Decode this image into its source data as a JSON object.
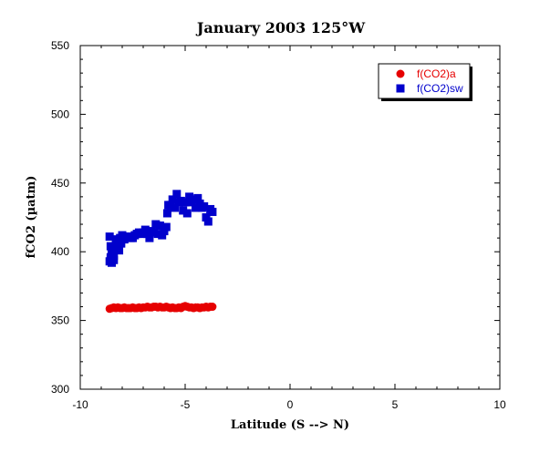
{
  "chart_data": {
    "type": "scatter",
    "title": "January 2003 125°W",
    "xlabel": "Latitude (S --> N)",
    "ylabel": "fCO2 (µatm)",
    "xlim": [
      -10,
      10
    ],
    "ylim": [
      300,
      550
    ],
    "xticks": [
      -10,
      -5,
      0,
      5,
      10
    ],
    "yticks": [
      300,
      350,
      400,
      450,
      500,
      550
    ],
    "x_tick_labels": [
      "-10",
      "-5",
      "0",
      "5",
      "10"
    ],
    "y_tick_labels": [
      "300",
      "350",
      "400",
      "450",
      "500",
      "550"
    ],
    "grid": false,
    "legend_position": "top-right",
    "series": [
      {
        "name": "f(CO2)a",
        "marker": "circle",
        "color": "#e60000",
        "x": [
          -8.6,
          -8.5,
          -8.4,
          -8.3,
          -8.2,
          -8.1,
          -8.0,
          -7.9,
          -7.8,
          -7.7,
          -7.6,
          -7.5,
          -7.4,
          -7.3,
          -7.2,
          -7.1,
          -7.0,
          -6.9,
          -6.8,
          -6.7,
          -6.6,
          -6.5,
          -6.4,
          -6.3,
          -6.2,
          -6.1,
          -6.0,
          -5.9,
          -5.8,
          -5.7,
          -5.6,
          -5.5,
          -5.4,
          -5.3,
          -5.2,
          -5.1,
          -5.0,
          -4.9,
          -4.8,
          -4.7,
          -4.6,
          -4.5,
          -4.4,
          -4.3,
          -4.2,
          -4.1,
          -4.0,
          -3.9,
          -3.8,
          -3.7
        ],
        "y": [
          358.5,
          359,
          359.5,
          359,
          359.5,
          359,
          359,
          359.5,
          359,
          359,
          359,
          359.5,
          359,
          359,
          359.5,
          359,
          359.5,
          359.5,
          360,
          359.5,
          359.5,
          360,
          360,
          359.5,
          360,
          359.5,
          359.5,
          360,
          359.5,
          359,
          359.5,
          359,
          359,
          359.5,
          359,
          360,
          360.5,
          360,
          359.5,
          359.5,
          359,
          359.5,
          359.5,
          359,
          359.5,
          359.5,
          360,
          359.5,
          360,
          360
        ]
      },
      {
        "name": "f(CO2)sw",
        "marker": "square",
        "color": "#0000cc",
        "x": [
          -8.6,
          -8.6,
          -8.55,
          -8.55,
          -8.5,
          -8.5,
          -8.45,
          -8.4,
          -8.4,
          -8.35,
          -8.3,
          -8.3,
          -8.2,
          -8.15,
          -8.1,
          -8.05,
          -8.0,
          -7.9,
          -7.8,
          -7.7,
          -7.6,
          -7.5,
          -7.4,
          -7.3,
          -7.2,
          -7.1,
          -7.0,
          -6.9,
          -6.8,
          -6.7,
          -6.6,
          -6.5,
          -6.4,
          -6.3,
          -6.2,
          -6.1,
          -6.0,
          -5.9,
          -5.85,
          -5.8,
          -5.7,
          -5.6,
          -5.5,
          -5.4,
          -5.3,
          -5.2,
          -5.1,
          -5.0,
          -4.9,
          -4.8,
          -4.7,
          -4.6,
          -4.5,
          -4.4,
          -4.3,
          -4.2,
          -4.1,
          -4.0,
          -3.9,
          -3.8,
          -3.7
        ],
        "y": [
          393,
          411,
          396,
          404,
          392,
          399,
          402,
          394,
          397,
          404,
          402,
          409,
          405,
          401,
          410,
          406,
          412,
          409,
          411,
          411,
          410,
          410,
          412,
          413,
          414,
          413,
          414,
          416,
          413,
          410,
          415,
          414,
          420,
          413,
          419,
          412,
          415,
          418,
          428,
          434,
          434,
          438,
          432,
          442,
          436,
          437,
          430,
          436,
          428,
          440,
          436,
          438,
          432,
          439,
          435,
          432,
          433,
          425,
          422,
          431,
          429
        ]
      }
    ]
  }
}
